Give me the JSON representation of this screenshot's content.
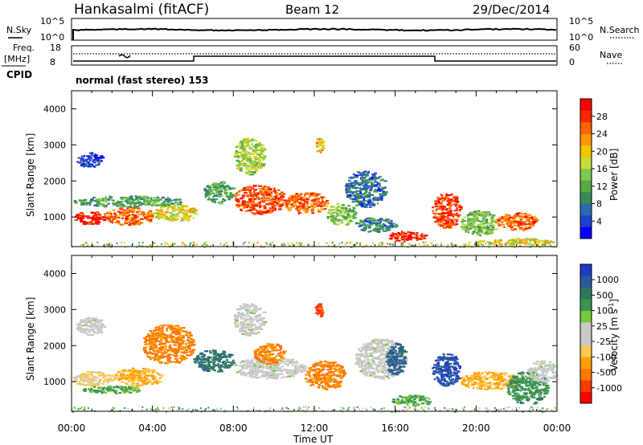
{
  "header": {
    "station": "Hankasalmi (fitACF)",
    "beam": "Beam 12",
    "date": "29/Dec/2014"
  },
  "nsky_panel": {
    "left_label": "N.Sky",
    "right_label": "N.Search",
    "left_ticks": [
      "10^5",
      "10^0"
    ],
    "right_ticks": [
      "10^5",
      "10^0"
    ]
  },
  "freq_panel": {
    "left_label_1": "Freq.",
    "left_label_2": "[MHz]",
    "left_ticks": [
      "18",
      "8"
    ],
    "right_label": "Nave",
    "right_ticks": [
      "60",
      "0"
    ],
    "cpid_label": "CPID",
    "cpid_text": "normal (fast stereo) 153"
  },
  "chart_data": [
    {
      "type": "heatmap",
      "name": "power",
      "ylabel": "Slant Range [km]",
      "xlabel": "Time UT",
      "xlim": [
        0,
        24
      ],
      "ylim": [
        180,
        4500
      ],
      "x_ticks": [
        "00:00",
        "04:00",
        "08:00",
        "12:00",
        "16:00",
        "20:00",
        "00:00"
      ],
      "y_ticks": [
        "1000",
        "2000",
        "3000",
        "4000"
      ],
      "colorbar": {
        "label": "Power [dB]",
        "ticks": [
          "28",
          "24",
          "20",
          "16",
          "12",
          "8",
          "4"
        ],
        "colors": [
          "#0000ff",
          "#1f3fd0",
          "#2b6ab0",
          "#3a8a5a",
          "#55aa44",
          "#7ec850",
          "#c8dc3c",
          "#f0c800",
          "#ff9600",
          "#ff6400",
          "#ff2800",
          "#ff0000"
        ]
      },
      "regions": [
        {
          "t0": 0.1,
          "t1": 1.6,
          "r0": 820,
          "r1": 1180,
          "level": 28
        },
        {
          "t0": 1.6,
          "t1": 4.0,
          "r0": 800,
          "r1": 1300,
          "level": 24
        },
        {
          "t0": 4.0,
          "t1": 6.2,
          "r0": 900,
          "r1": 1350,
          "level": 18
        },
        {
          "t0": 0.0,
          "t1": 5.5,
          "r0": 1300,
          "r1": 1600,
          "level": 12
        },
        {
          "t0": 0.2,
          "t1": 1.5,
          "r0": 2400,
          "r1": 2800,
          "level": 6
        },
        {
          "t0": 6.5,
          "t1": 8.0,
          "r0": 1400,
          "r1": 2000,
          "level": 12
        },
        {
          "t0": 8.0,
          "t1": 9.5,
          "r0": 2200,
          "r1": 3200,
          "level": 16
        },
        {
          "t0": 8.0,
          "t1": 10.5,
          "r0": 1100,
          "r1": 1900,
          "level": 26
        },
        {
          "t0": 10.5,
          "t1": 12.6,
          "r0": 1100,
          "r1": 1700,
          "level": 24
        },
        {
          "t0": 12.6,
          "t1": 14.0,
          "r0": 800,
          "r1": 1400,
          "level": 14
        },
        {
          "t0": 12.0,
          "t1": 12.4,
          "r0": 2800,
          "r1": 3200,
          "level": 20
        },
        {
          "t0": 13.5,
          "t1": 15.5,
          "r0": 1300,
          "r1": 2300,
          "level": 8
        },
        {
          "t0": 14.0,
          "t1": 16.0,
          "r0": 600,
          "r1": 1000,
          "level": 10
        },
        {
          "t0": 15.5,
          "t1": 17.5,
          "r0": 350,
          "r1": 620,
          "level": 28
        },
        {
          "t0": 17.8,
          "t1": 19.2,
          "r0": 700,
          "r1": 1700,
          "level": 26
        },
        {
          "t0": 19.2,
          "t1": 21.0,
          "r0": 500,
          "r1": 1200,
          "level": 14
        },
        {
          "t0": 21.0,
          "t1": 23.0,
          "r0": 650,
          "r1": 1150,
          "level": 24
        },
        {
          "t0": 20.0,
          "t1": 24.0,
          "r0": 250,
          "r1": 420,
          "level": 18
        }
      ]
    },
    {
      "type": "heatmap",
      "name": "velocity",
      "ylabel": "Slant Range [km]",
      "xlabel": "Time UT",
      "xlim": [
        0,
        24
      ],
      "ylim": [
        180,
        4500
      ],
      "x_ticks": [
        "00:00",
        "04:00",
        "08:00",
        "12:00",
        "16:00",
        "20:00",
        "00:00"
      ],
      "y_ticks": [
        "1000",
        "2000",
        "3000",
        "4000"
      ],
      "colorbar": {
        "label": "Velocity [m s^-1]",
        "ticks": [
          "1000",
          "500",
          "100",
          "25",
          "-25",
          "-100",
          "-500",
          "-1000"
        ],
        "colors": [
          "#ff0000",
          "#ff3c00",
          "#ff7800",
          "#ffa000",
          "#ffc850",
          "#c8c8c8",
          "#c8c8c8",
          "#78c83c",
          "#3c9650",
          "#2f7860",
          "#2a5a9a",
          "#1e3cc8"
        ]
      },
      "regions": [
        {
          "t0": 0.2,
          "t1": 1.6,
          "r0": 2300,
          "r1": 2800,
          "level": 0
        },
        {
          "t0": 0.0,
          "t1": 2.0,
          "r0": 900,
          "r1": 1300,
          "level": -60
        },
        {
          "t0": 0.5,
          "t1": 3.5,
          "r0": 700,
          "r1": 900,
          "level": 60
        },
        {
          "t0": 2.0,
          "t1": 4.5,
          "r0": 900,
          "r1": 1400,
          "level": -100
        },
        {
          "t0": 3.5,
          "t1": 6.0,
          "r0": 1500,
          "r1": 2600,
          "level": -300
        },
        {
          "t0": 6.0,
          "t1": 8.0,
          "r0": 1300,
          "r1": 1900,
          "level": 200
        },
        {
          "t0": 8.0,
          "t1": 9.5,
          "r0": 2300,
          "r1": 3200,
          "level": 0
        },
        {
          "t0": 8.0,
          "t1": 11.5,
          "r0": 1100,
          "r1": 1700,
          "level": 0
        },
        {
          "t0": 9.0,
          "t1": 10.5,
          "r0": 1500,
          "r1": 2100,
          "level": -300
        },
        {
          "t0": 11.5,
          "t1": 13.5,
          "r0": 800,
          "r1": 1600,
          "level": -300
        },
        {
          "t0": 12.0,
          "t1": 12.4,
          "r0": 2800,
          "r1": 3200,
          "level": -700
        },
        {
          "t0": 14.0,
          "t1": 16.5,
          "r0": 1100,
          "r1": 2200,
          "level": 0
        },
        {
          "t0": 15.5,
          "t1": 16.5,
          "r0": 1200,
          "r1": 2100,
          "level": 300
        },
        {
          "t0": 15.8,
          "t1": 17.8,
          "r0": 350,
          "r1": 650,
          "level": 60
        },
        {
          "t0": 17.8,
          "t1": 19.2,
          "r0": 900,
          "r1": 1800,
          "level": 500
        },
        {
          "t0": 19.2,
          "t1": 22.0,
          "r0": 800,
          "r1": 1300,
          "level": -100
        },
        {
          "t0": 21.5,
          "t1": 23.5,
          "r0": 400,
          "r1": 1300,
          "level": 80
        },
        {
          "t0": 22.5,
          "t1": 24.0,
          "r0": 1000,
          "r1": 1600,
          "level": 0
        }
      ]
    }
  ]
}
